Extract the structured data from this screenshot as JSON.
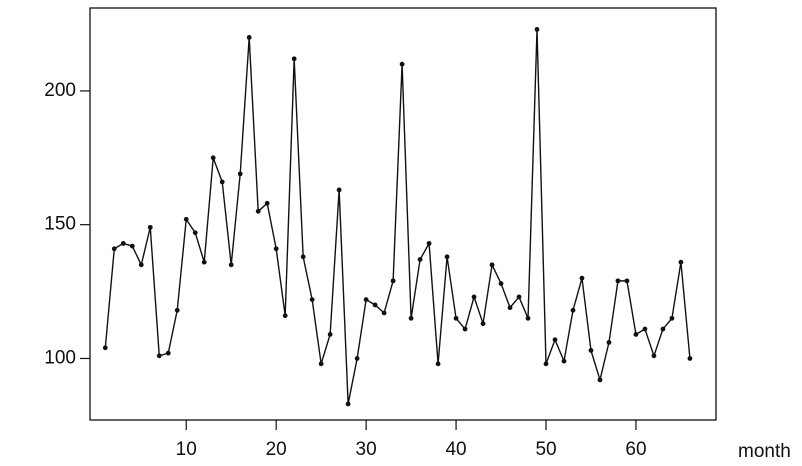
{
  "chart_data": {
    "type": "line",
    "x_label": "month",
    "x": [
      1,
      2,
      3,
      4,
      5,
      6,
      7,
      8,
      9,
      10,
      11,
      12,
      13,
      14,
      15,
      16,
      17,
      18,
      19,
      20,
      21,
      22,
      23,
      24,
      25,
      26,
      27,
      28,
      29,
      30,
      31,
      32,
      33,
      34,
      35,
      36,
      37,
      38,
      39,
      40,
      41,
      42,
      43,
      44,
      45,
      46,
      47,
      48,
      49,
      50,
      51,
      52,
      53,
      54,
      55,
      56,
      57,
      58,
      59,
      60,
      61,
      62,
      63,
      64,
      65,
      66
    ],
    "series": [
      {
        "color": "#111111",
        "values": [
          104,
          141,
          143,
          142,
          135,
          149,
          101,
          102,
          118,
          152,
          147,
          136,
          175,
          166,
          135,
          169,
          220,
          155,
          158,
          141,
          116,
          212,
          138,
          122,
          98,
          109,
          163,
          83,
          100,
          122,
          120,
          117,
          129,
          210,
          115,
          137,
          143,
          98,
          138,
          115,
          111,
          123,
          113,
          135,
          128,
          119,
          123,
          115,
          223,
          98,
          107,
          99,
          118,
          130,
          103,
          92,
          106,
          129,
          129,
          109,
          111,
          101,
          111,
          115,
          136,
          100
        ]
      }
    ],
    "xlim": [
      -0.7,
      68.9
    ],
    "ylim": [
      77,
      231
    ],
    "xticks": [
      10,
      20,
      30,
      40,
      50,
      60
    ],
    "yticks": [
      100,
      150,
      200
    ]
  }
}
